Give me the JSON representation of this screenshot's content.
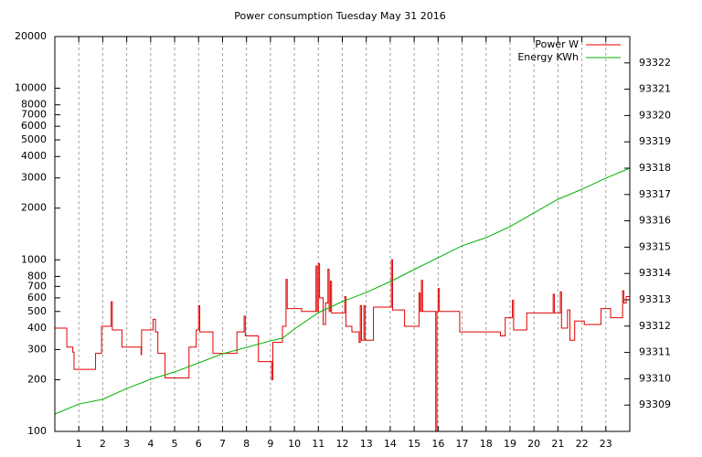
{
  "chart_data": {
    "type": "line",
    "title": "Power consumption Tuesday May 31 2016",
    "xlim": [
      0,
      24
    ],
    "xticks": [
      1,
      2,
      3,
      4,
      5,
      6,
      7,
      8,
      9,
      10,
      11,
      12,
      13,
      14,
      15,
      16,
      17,
      18,
      19,
      20,
      21,
      22,
      23
    ],
    "ylim": [
      100,
      20000
    ],
    "yscale": "log",
    "yticks": [
      100,
      200,
      300,
      400,
      500,
      600,
      700,
      800,
      1000,
      2000,
      3000,
      4000,
      5000,
      6000,
      7000,
      8000,
      10000,
      20000
    ],
    "y2lim": [
      93308,
      93323
    ],
    "y2ticks": [
      93309,
      93310,
      93311,
      93312,
      93313,
      93314,
      93315,
      93316,
      93317,
      93318,
      93319,
      93320,
      93321,
      93322
    ],
    "grid": "x",
    "legend": "top-right",
    "series": [
      {
        "name": "Power W",
        "color": "#e00000",
        "style": "steps",
        "x": [
          0,
          0.5,
          0.75,
          0.8,
          1.7,
          1.95,
          2.35,
          2.4,
          2.8,
          3.6,
          3.62,
          4.1,
          4.2,
          4.3,
          4.6,
          5.6,
          5.9,
          6.0,
          6.05,
          6.6,
          7.6,
          7.9,
          7.95,
          8.5,
          9.05,
          9.1,
          9.5,
          9.65,
          9.7,
          10.3,
          10.9,
          10.95,
          11.0,
          11.05,
          11.2,
          11.3,
          11.4,
          11.45,
          11.5,
          11.55,
          12.1,
          12.15,
          12.4,
          12.7,
          12.75,
          12.8,
          12.9,
          12.95,
          13.3,
          14.05,
          14.1,
          14.6,
          15.2,
          15.25,
          15.3,
          15.35,
          15.9,
          15.95,
          16.0,
          16.05,
          16.9,
          18.6,
          18.8,
          19.1,
          19.15,
          19.7,
          20.8,
          20.85,
          21.1,
          21.15,
          21.4,
          21.5,
          21.7,
          22.1,
          22.8,
          23.2,
          23.7,
          23.75,
          23.85,
          24
        ],
        "values": [
          400,
          310,
          290,
          230,
          285,
          410,
          570,
          390,
          310,
          280,
          390,
          450,
          380,
          285,
          205,
          310,
          390,
          540,
          380,
          285,
          380,
          470,
          360,
          255,
          200,
          330,
          410,
          770,
          520,
          500,
          920,
          500,
          950,
          600,
          420,
          560,
          880,
          500,
          750,
          490,
          610,
          410,
          380,
          330,
          540,
          340,
          540,
          340,
          530,
          1000,
          510,
          410,
          640,
          500,
          760,
          500,
          100,
          500,
          680,
          500,
          380,
          360,
          460,
          580,
          390,
          490,
          630,
          490,
          650,
          400,
          510,
          340,
          440,
          420,
          520,
          460,
          660,
          560,
          610,
          610
        ]
      },
      {
        "name": "Energy KWh",
        "color": "#00b000",
        "axis": "y2",
        "x": [
          0,
          1,
          2,
          3,
          4,
          5,
          6,
          7,
          8,
          9,
          9.5,
          10,
          11,
          12,
          13,
          14,
          15,
          16,
          17,
          18,
          19,
          20,
          21,
          22,
          23,
          24
        ],
        "values": [
          93308.66,
          93309.04,
          93309.22,
          93309.63,
          93309.98,
          93310.26,
          93310.6,
          93310.95,
          93311.19,
          93311.44,
          93311.54,
          93311.89,
          93312.51,
          93312.93,
          93313.28,
          93313.69,
          93314.15,
          93314.6,
          93315.05,
          93315.36,
          93315.78,
          93316.3,
          93316.82,
          93317.2,
          93317.62,
          93318.0
        ]
      }
    ]
  }
}
